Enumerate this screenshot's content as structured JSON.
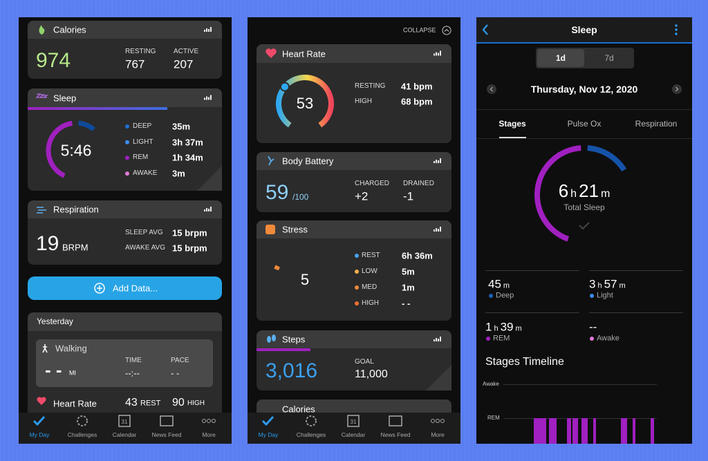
{
  "nav": {
    "items": [
      "My Day",
      "Challenges",
      "Calendar",
      "News Feed",
      "More"
    ],
    "calendar_day": "31"
  },
  "screen1": {
    "calories": {
      "title": "Calories",
      "total": "974",
      "stats": [
        {
          "label": "RESTING",
          "value": "767"
        },
        {
          "label": "ACTIVE",
          "value": "207"
        }
      ]
    },
    "sleep": {
      "title": "Sleep",
      "total": "5:46",
      "stages": [
        {
          "label": "DEEP",
          "value": "35m"
        },
        {
          "label": "LIGHT",
          "value": "3h 37m"
        },
        {
          "label": "REM",
          "value": "1h 34m"
        },
        {
          "label": "AWAKE",
          "value": "3m"
        }
      ]
    },
    "respiration": {
      "title": "Respiration",
      "value": "19",
      "unit": "BRPM",
      "stats": [
        {
          "label": "SLEEP AVG",
          "value": "15 brpm"
        },
        {
          "label": "AWAKE AVG",
          "value": "15 brpm"
        }
      ]
    },
    "add_data": "Add Data...",
    "yesterday": {
      "title": "Yesterday",
      "activity": "Walking",
      "distance": "- -",
      "distance_unit": "MI",
      "stats": [
        {
          "label": "TIME",
          "value": "--:--"
        },
        {
          "label": "PACE",
          "value": "- -"
        }
      ],
      "heart_rate": {
        "title": "Heart Rate",
        "rest": "43",
        "rest_label": "REST",
        "high": "90",
        "high_label": "HIGH"
      }
    }
  },
  "screen2": {
    "collapse": "COLLAPSE",
    "heart_rate": {
      "title": "Heart Rate",
      "value": "53",
      "stats": [
        {
          "label": "RESTING",
          "value": "41 bpm"
        },
        {
          "label": "HIGH",
          "value": "68 bpm"
        }
      ]
    },
    "body_battery": {
      "title": "Body Battery",
      "value": "59",
      "max": "/100",
      "stats": [
        {
          "label": "CHARGED",
          "value": "+2"
        },
        {
          "label": "DRAINED",
          "value": "-1"
        }
      ]
    },
    "stress": {
      "title": "Stress",
      "value": "5",
      "levels": [
        {
          "label": "REST",
          "value": "6h 36m"
        },
        {
          "label": "LOW",
          "value": "5m"
        },
        {
          "label": "MED",
          "value": "1m"
        },
        {
          "label": "HIGH",
          "value": "- -"
        }
      ]
    },
    "steps": {
      "title": "Steps",
      "value": "3,016",
      "goal_label": "GOAL",
      "goal": "11,000"
    },
    "calories": {
      "title": "Calories"
    }
  },
  "screen3": {
    "title": "Sleep",
    "ranges": [
      "1d",
      "7d"
    ],
    "date": "Thursday, Nov 12, 2020",
    "tabs": [
      "Stages",
      "Pulse Ox",
      "Respiration"
    ],
    "total": {
      "hours": "6",
      "h": "h",
      "minutes": "21",
      "m": "m",
      "label": "Total Sleep"
    },
    "stages": [
      {
        "name": "Deep",
        "parts": [
          "45",
          "m"
        ]
      },
      {
        "name": "Light",
        "parts": [
          "3",
          "h",
          "57",
          "m"
        ]
      },
      {
        "name": "REM",
        "parts": [
          "1",
          "h",
          "39",
          "m"
        ]
      },
      {
        "name": "Awake",
        "parts": [
          "--"
        ]
      }
    ],
    "timeline": {
      "title": "Stages Timeline",
      "levels": [
        "Awake",
        "REM"
      ]
    }
  }
}
